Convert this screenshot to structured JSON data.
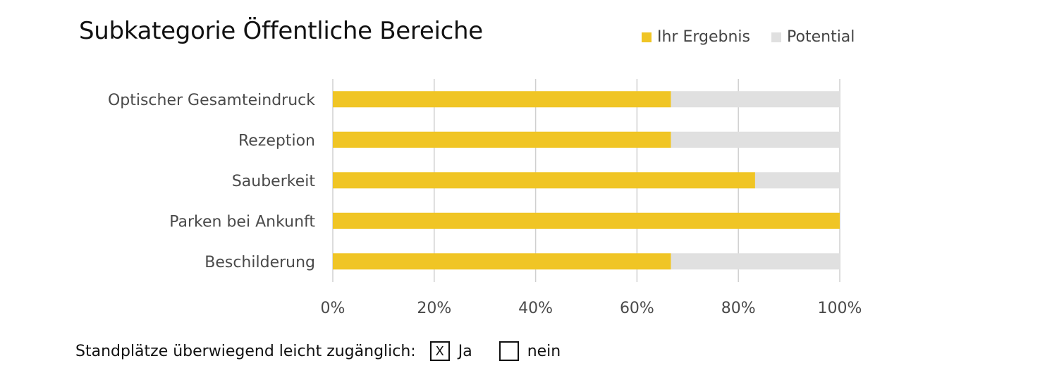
{
  "chart_data": {
    "type": "bar",
    "orientation": "horizontal",
    "stacked": true,
    "title": "Subkategorie Öffentliche Bereiche",
    "categories": [
      "Optischer Gesamteindruck",
      "Rezeption",
      "Sauberkeit",
      "Parken bei Ankunft",
      "Beschilderung"
    ],
    "series": [
      {
        "name": "Ihr Ergebnis",
        "values": [
          66.7,
          66.7,
          83.3,
          100,
          66.7
        ],
        "color": "#F0C525"
      },
      {
        "name": "Potential",
        "values": [
          33.3,
          33.3,
          16.7,
          0,
          33.3
        ],
        "color": "#E0E0E0"
      }
    ],
    "xlim": [
      0,
      100
    ],
    "xticks": [
      "0%",
      "20%",
      "40%",
      "60%",
      "80%",
      "100%"
    ],
    "grid": true,
    "legend_position": "top-right"
  },
  "footer": {
    "label": "Standplätze überwiegend leicht zugänglich:",
    "option_yes_mark": "X",
    "option_yes_label": "Ja",
    "option_no_mark": "",
    "option_no_label": "nein"
  },
  "colors": {
    "result": "#F0C525",
    "potential": "#E0E0E0",
    "gridline": "#D0D0D0",
    "label_text": "#4A4A4A"
  }
}
